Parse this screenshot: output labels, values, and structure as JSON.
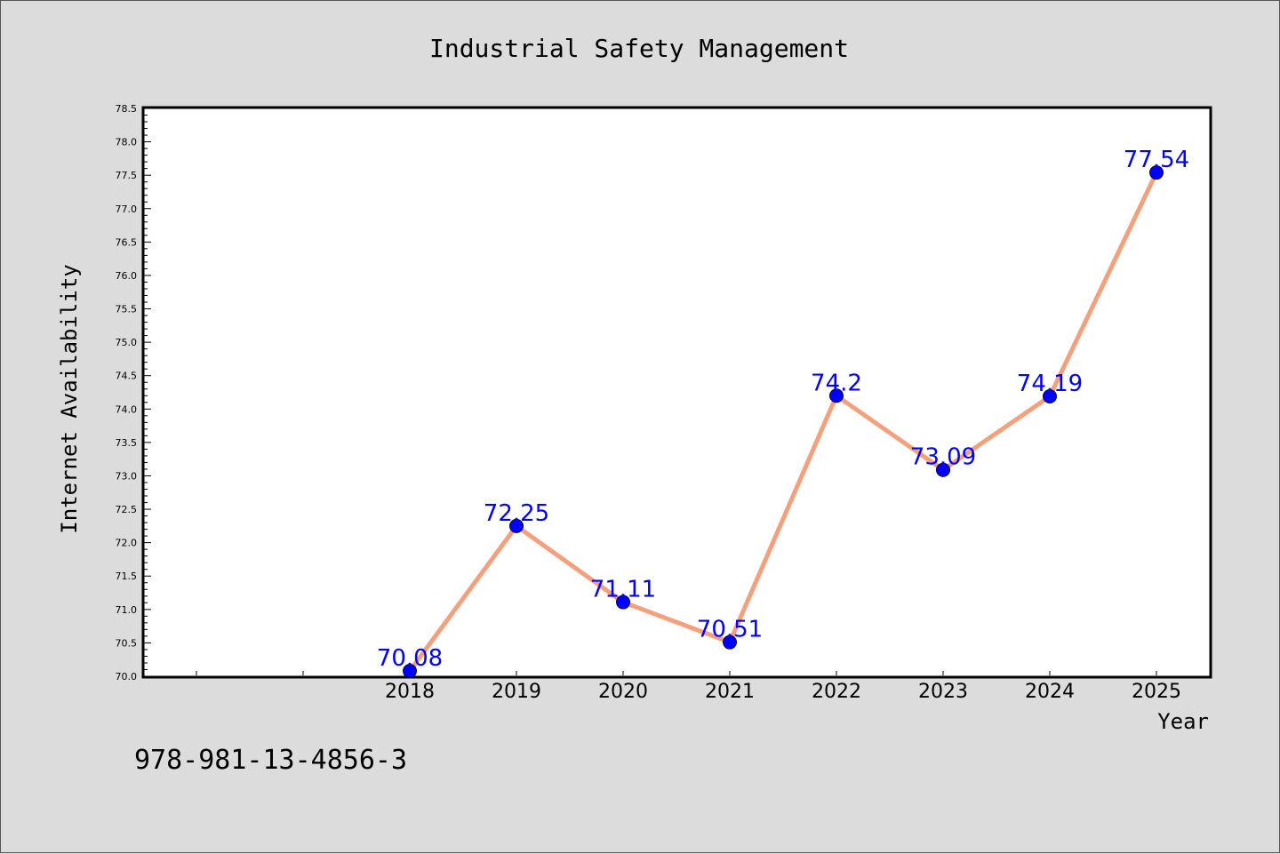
{
  "chart_data": {
    "type": "line",
    "title": "Industrial Safety Management",
    "xlabel": "Year",
    "ylabel": "Internet Availability",
    "categories": [
      "2018",
      "2019",
      "2020",
      "2021",
      "2022",
      "2023",
      "2024",
      "2025"
    ],
    "series": [
      {
        "values": [
          70.08,
          72.25,
          71.11,
          70.51,
          74.2,
          73.09,
          74.19,
          77.54
        ],
        "value_labels": [
          "70.08",
          "72.25",
          "71.11",
          "70.51",
          "74.2",
          "73.09",
          "74.19",
          "77.54"
        ],
        "line_color": "#f4a07c",
        "marker_color": "#0000ff",
        "label_color": "#0000ff"
      }
    ],
    "ylim": [
      70.0,
      78.5
    ],
    "y_ticks": [
      "70.0",
      "70.5",
      "71.0",
      "71.5",
      "72.0",
      "72.5",
      "73.0",
      "73.5",
      "74.0",
      "74.5",
      "75.0",
      "75.5",
      "76.0",
      "76.5",
      "77.0",
      "77.5",
      "78.0",
      "78.5"
    ],
    "grid": false,
    "legend": "none"
  },
  "footer_text": "978-981-13-4856-3",
  "colors": {
    "background": "#dcdcdc",
    "plot_background": "#ffffff",
    "axis": "#000000"
  }
}
